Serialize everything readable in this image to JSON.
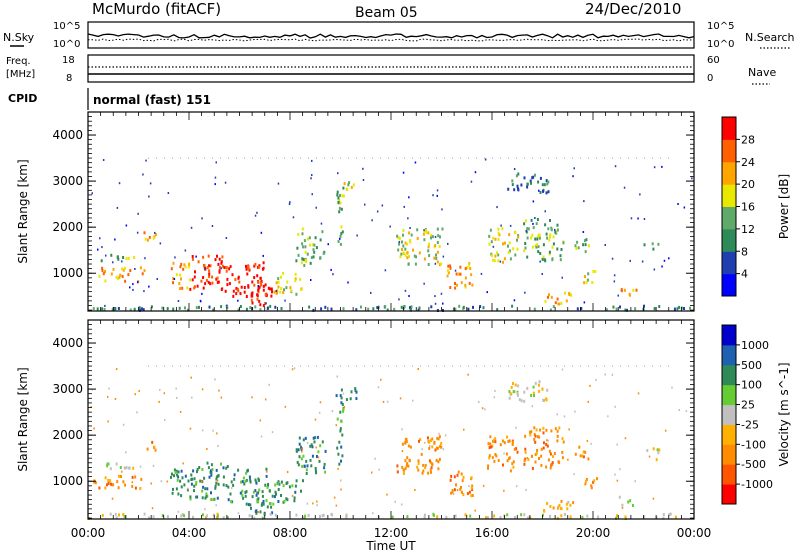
{
  "header": {
    "station": "McMurdo (fitACF)",
    "beam": "Beam 05",
    "date": "24/Dec/2010"
  },
  "summary_panels": {
    "nsky_label": "N.Sky",
    "nsky_ticks": [
      "10^5",
      "10^0"
    ],
    "nsearch_label": "N.Search",
    "nsearch_ticks": [
      "10^5",
      "10^0"
    ],
    "freq_label_1": "Freq.",
    "freq_label_2": "[MHz]",
    "freq_ticks": [
      "18",
      "8"
    ],
    "nave_label": "Nave",
    "nave_ticks": [
      "60",
      "0"
    ],
    "cpid_label": "CPID",
    "cpid_value": "normal (fast) 151"
  },
  "colors": {
    "power_scale": [
      "#0000ff",
      "#1f3fb0",
      "#2e8b57",
      "#5faa6a",
      "#e8e800",
      "#ffa500",
      "#ff6000",
      "#ff0000"
    ],
    "velocity_scale": [
      "#ff0000",
      "#ff5500",
      "#ff8c00",
      "#ffb000",
      "#c0c0c0",
      "#66cc33",
      "#2e8b57",
      "#2060b0",
      "#0000cd"
    ]
  },
  "chart_data": [
    {
      "type": "heatmap",
      "title": "Power",
      "xlabel": "Time UT",
      "ylabel": "Slant Range [km]",
      "x_ticks": [
        "00:00",
        "04:00",
        "08:00",
        "12:00",
        "16:00",
        "20:00",
        "00:00"
      ],
      "y_ticks": [
        "1000",
        "2000",
        "3000",
        "4000"
      ],
      "ylim": [
        180,
        4500
      ],
      "colorbar_label": "Power [dB]",
      "colorbar_ticks": [
        "4",
        "8",
        "12",
        "16",
        "20",
        "24",
        "28"
      ],
      "colorbar_range": [
        0,
        32
      ]
    },
    {
      "type": "heatmap",
      "title": "Velocity",
      "xlabel": "Time UT",
      "ylabel": "Slant Range [km]",
      "x_ticks": [
        "00:00",
        "04:00",
        "08:00",
        "12:00",
        "16:00",
        "20:00",
        "00:00"
      ],
      "y_ticks": [
        "1000",
        "2000",
        "3000",
        "4000"
      ],
      "ylim": [
        180,
        4500
      ],
      "colorbar_label": "Velocity [m s^-1]",
      "colorbar_ticks": [
        "-1000",
        "-500",
        "-100",
        "-25",
        "25",
        "100",
        "500",
        "1000"
      ]
    }
  ]
}
